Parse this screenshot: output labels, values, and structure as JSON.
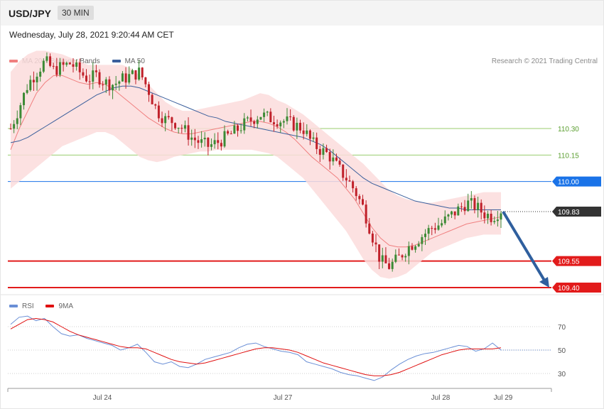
{
  "header": {
    "symbol": "USD/JPY",
    "timeframe": "30 MIN"
  },
  "datetime": "Wednesday, July 28, 2021 9:20:44 AM CET",
  "legend": {
    "ma20_label": "MA 20 + Bollinger Bands",
    "ma50_label": "MA 50",
    "ma20_color": "#f08080",
    "ma50_color": "#3b5f9c"
  },
  "credit": "Research © 2021 Trading Central",
  "rsi_legend": {
    "rsi_label": "RSI",
    "ma9_label": "9MA",
    "rsi_color": "#6a8fd6",
    "ma9_color": "#e01010"
  },
  "colors": {
    "bull": "#3c8a35",
    "bear": "#c0202a",
    "band_fill": "#fcdcdc",
    "ma20": "#f08080",
    "ma50": "#3b5f9c",
    "resistance_green": "#9acd6e",
    "pivot_blue": "#1a73e8",
    "support_red": "#e21b1b",
    "arrow": "#2f5f9e",
    "current_box": "#333333"
  },
  "chart_data": [
    {
      "type": "candlestick",
      "title": "USD/JPY 30 MIN",
      "x_ticks": [
        "Jul 24",
        "Jul 27",
        "Jul 28",
        "Jul 29"
      ],
      "ylim": [
        109.3,
        110.9
      ],
      "levels": [
        {
          "value": 110.3,
          "label": "110.30",
          "kind": "resistance"
        },
        {
          "value": 110.15,
          "label": "110.15",
          "kind": "resistance"
        },
        {
          "value": 110.0,
          "label": "110.00",
          "kind": "pivot"
        },
        {
          "value": 109.83,
          "label": "109.83",
          "kind": "current"
        },
        {
          "value": 109.55,
          "label": "109.55",
          "kind": "support"
        },
        {
          "value": 109.4,
          "label": "109.40",
          "kind": "support"
        }
      ],
      "close_series": [
        110.3,
        110.42,
        110.55,
        110.62,
        110.68,
        110.63,
        110.65,
        110.67,
        110.62,
        110.58,
        110.6,
        110.56,
        110.55,
        110.58,
        110.6,
        110.62,
        110.52,
        110.4,
        110.35,
        110.34,
        110.3,
        110.25,
        110.22,
        110.2,
        110.22,
        110.25,
        110.28,
        110.32,
        110.35,
        110.38,
        110.36,
        110.35,
        110.34,
        110.32,
        110.3,
        110.22,
        110.18,
        110.15,
        110.08,
        110.02,
        109.95,
        109.85,
        109.7,
        109.55,
        109.52,
        109.56,
        109.62,
        109.66,
        109.7,
        109.74,
        109.76,
        109.8,
        109.84,
        109.88,
        109.86,
        109.82,
        109.8,
        109.84
      ],
      "ma20": [
        110.18,
        110.3,
        110.4,
        110.5,
        110.56,
        110.6,
        110.6,
        110.58,
        110.56,
        110.55,
        110.56,
        110.55,
        110.52,
        110.48,
        110.44,
        110.4,
        110.36,
        110.33,
        110.3,
        110.28,
        110.27,
        110.27,
        110.28,
        110.29,
        110.3,
        110.31,
        110.32,
        110.33,
        110.34,
        110.34,
        110.33,
        110.31,
        110.28,
        110.24,
        110.19,
        110.14,
        110.1,
        110.06,
        110.02,
        109.96,
        109.9,
        109.82,
        109.74,
        109.68,
        109.64,
        109.63,
        109.63,
        109.64,
        109.66,
        109.68,
        109.7,
        109.72,
        109.74,
        109.76,
        109.77,
        109.78,
        109.79,
        109.8
      ],
      "ma50": [
        110.22,
        110.23,
        110.25,
        110.28,
        110.31,
        110.34,
        110.37,
        110.4,
        110.43,
        110.46,
        110.49,
        110.51,
        110.53,
        110.54,
        110.54,
        110.53,
        110.51,
        110.49,
        110.47,
        110.45,
        110.43,
        110.41,
        110.39,
        110.37,
        110.36,
        110.34,
        110.33,
        110.32,
        110.31,
        110.3,
        110.29,
        110.28,
        110.27,
        110.26,
        110.25,
        110.23,
        110.21,
        110.18,
        110.14,
        110.1,
        110.06,
        110.02,
        109.99,
        109.97,
        109.95,
        109.93,
        109.91,
        109.89,
        109.88,
        109.87,
        109.86,
        109.85,
        109.85,
        109.84,
        109.84,
        109.84,
        109.84,
        109.84
      ],
      "band_upper": [
        110.62,
        110.68,
        110.72,
        110.74,
        110.74,
        110.73,
        110.72,
        110.7,
        110.68,
        110.66,
        110.66,
        110.66,
        110.66,
        110.66,
        110.64,
        110.6,
        110.55,
        110.5,
        110.45,
        110.42,
        110.4,
        110.4,
        110.41,
        110.42,
        110.43,
        110.44,
        110.45,
        110.46,
        110.48,
        110.5,
        110.49,
        110.46,
        110.44,
        110.41,
        110.38,
        110.34,
        110.3,
        110.26,
        110.22,
        110.18,
        110.14,
        110.1,
        110.05,
        110.0,
        109.95,
        109.92,
        109.9,
        109.89,
        109.88,
        109.88,
        109.89,
        109.9,
        109.91,
        109.92,
        109.93,
        109.94,
        109.94,
        109.94
      ],
      "band_lower": [
        109.96,
        110.0,
        110.04,
        110.08,
        110.12,
        110.16,
        110.2,
        110.22,
        110.24,
        110.26,
        110.28,
        110.28,
        110.26,
        110.22,
        110.18,
        110.14,
        110.12,
        110.11,
        110.12,
        110.14,
        110.15,
        110.16,
        110.17,
        110.17,
        110.18,
        110.18,
        110.18,
        110.18,
        110.18,
        110.17,
        110.16,
        110.14,
        110.1,
        110.06,
        110.02,
        109.96,
        109.9,
        109.84,
        109.78,
        109.72,
        109.64,
        109.56,
        109.5,
        109.46,
        109.45,
        109.46,
        109.48,
        109.52,
        109.56,
        109.6,
        109.62,
        109.64,
        109.66,
        109.68,
        109.69,
        109.7,
        109.7,
        109.7
      ]
    },
    {
      "type": "line",
      "title": "",
      "legend": [
        "RSI",
        "9MA"
      ],
      "yticks": [
        70,
        50,
        30
      ],
      "ylim": [
        17,
        85
      ],
      "rsi": [
        72,
        78,
        79,
        75,
        77,
        70,
        64,
        62,
        63,
        60,
        58,
        56,
        54,
        50,
        52,
        55,
        48,
        40,
        38,
        40,
        36,
        35,
        38,
        42,
        44,
        46,
        48,
        52,
        55,
        56,
        53,
        51,
        49,
        48,
        46,
        40,
        38,
        36,
        34,
        31,
        29,
        28,
        26,
        24,
        27,
        33,
        38,
        42,
        45,
        47,
        48,
        50,
        52,
        54,
        53,
        49,
        51,
        56,
        50
      ],
      "ma9": [
        68,
        72,
        76,
        77,
        76,
        74,
        70,
        66,
        63,
        61,
        59,
        57,
        55,
        53,
        52,
        52,
        51,
        48,
        45,
        42,
        40,
        39,
        38,
        39,
        41,
        43,
        45,
        47,
        49,
        51,
        52,
        52,
        51,
        50,
        48,
        45,
        42,
        39,
        37,
        35,
        33,
        31,
        29,
        28,
        28,
        29,
        31,
        34,
        37,
        40,
        43,
        46,
        48,
        50,
        51,
        51,
        51,
        51,
        52
      ]
    }
  ]
}
